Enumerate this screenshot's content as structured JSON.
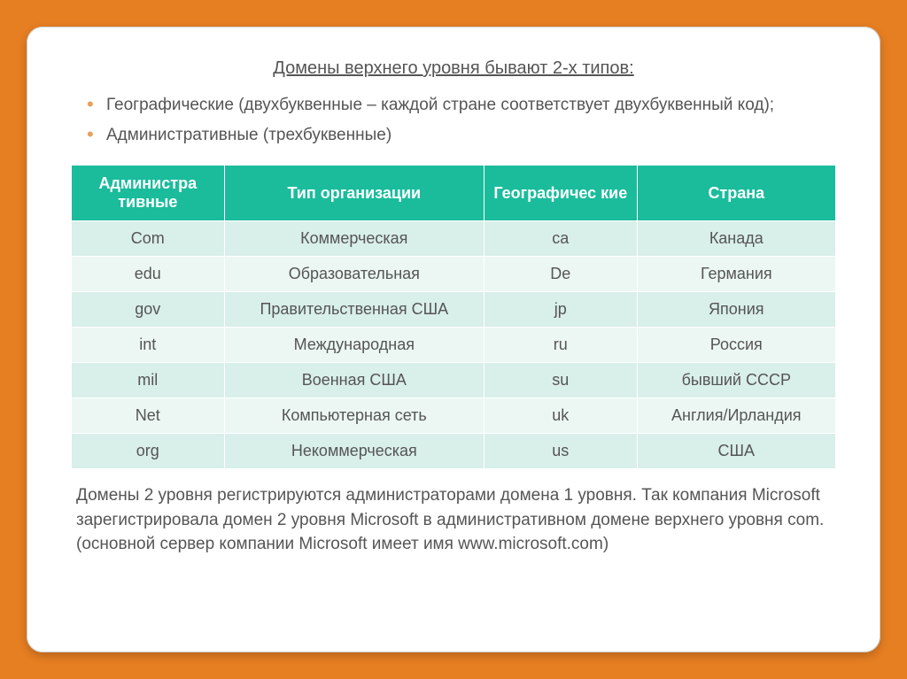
{
  "title": "Домены верхнего уровня бывают 2-х типов:",
  "bullets": [
    "Географические (двухбуквенные – каждой стране соответствует двухбуквенный код);",
    "Административные (трехбуквенные)"
  ],
  "table": {
    "header_bg": "#1abc9c",
    "header_color": "#ffffff",
    "row_odd_bg": "#d9efe9",
    "row_even_bg": "#ecf7f3",
    "columns": [
      "Администра тивные",
      "Тип организации",
      "Географичес кие",
      "Страна"
    ],
    "col_widths_pct": [
      20,
      34,
      20,
      26
    ],
    "rows": [
      [
        "Com",
        "Коммерческая",
        "ca",
        "Канада"
      ],
      [
        "edu",
        "Образовательная",
        "De",
        "Германия"
      ],
      [
        "gov",
        "Правительственная США",
        "jp",
        "Япония"
      ],
      [
        "int",
        "Международная",
        "ru",
        "Россия"
      ],
      [
        "mil",
        "Военная США",
        "su",
        "бывший СССР"
      ],
      [
        "Net",
        "Компьютерная сеть",
        "uk",
        "Англия/Ирландия"
      ],
      [
        "org",
        "Некоммерческая",
        "us",
        "США"
      ]
    ]
  },
  "footer": "Домены 2 уровня регистрируются администраторами домена 1 уровня. Так компания Microsoft зарегистрировала домен 2 уровня Microsoft в административном домене верхнего уровня com. (основной сервер компании Microsoft имеет имя www.microsoft.com)",
  "colors": {
    "page_bg": "#e67e22",
    "card_bg": "#ffffff",
    "bullet_marker": "#e8a05b",
    "text": "#555555"
  }
}
